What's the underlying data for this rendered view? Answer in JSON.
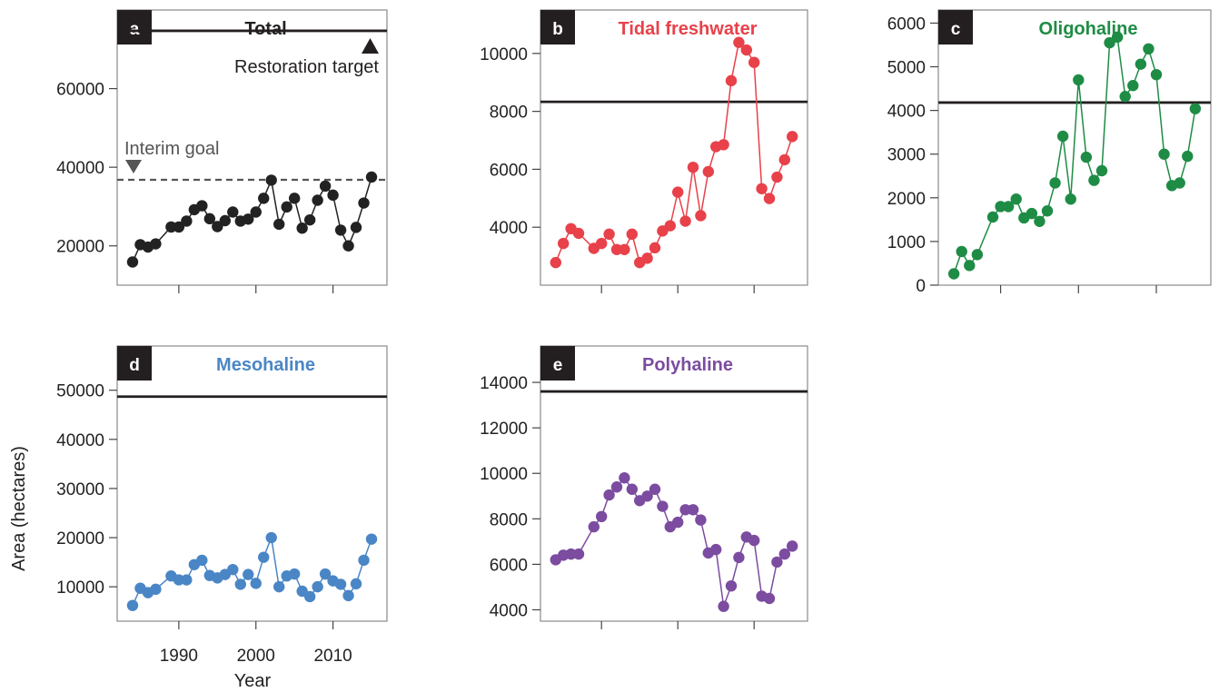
{
  "figure": {
    "ylabel": "Area (hectares)",
    "xlabel": "Year"
  },
  "chart_data": [
    {
      "panel": "a",
      "type": "line",
      "title": "Total",
      "color": "#222222",
      "x": [
        1984,
        1985,
        1986,
        1987,
        1988,
        1989,
        1990,
        1991,
        1992,
        1993,
        1994,
        1995,
        1996,
        1997,
        1998,
        1999,
        2000,
        2001,
        2002,
        2003,
        2004,
        2005,
        2006,
        2007,
        2008,
        2009,
        2010,
        2011,
        2012,
        2013,
        2014,
        2015
      ],
      "y": [
        15900,
        20300,
        19700,
        20500,
        null,
        24800,
        24800,
        26300,
        29200,
        30200,
        26900,
        24900,
        26400,
        28600,
        26300,
        26800,
        28600,
        32100,
        36700,
        25500,
        29900,
        32100,
        24500,
        26600,
        31600,
        35200,
        32900,
        24000,
        20000,
        24700,
        30900,
        37500
      ],
      "xlim": [
        1982,
        2017
      ],
      "ylim": [
        10000,
        80000
      ],
      "yticks": [
        20000,
        40000,
        60000
      ],
      "xticks": [
        1990,
        2000,
        2010
      ],
      "target": 74700,
      "interim_goal": 36800,
      "annotations": {
        "target_label": "Restoration target",
        "interim_label": "Interim goal"
      }
    },
    {
      "panel": "b",
      "type": "line",
      "title": "Tidal freshwater",
      "color": "#e8414a",
      "x": [
        1984,
        1985,
        1986,
        1987,
        1988,
        1989,
        1990,
        1991,
        1992,
        1993,
        1994,
        1995,
        1996,
        1997,
        1998,
        1999,
        2000,
        2001,
        2002,
        2003,
        2004,
        2005,
        2006,
        2007,
        2008,
        2009,
        2010,
        2011,
        2012,
        2013,
        2014,
        2015
      ],
      "y": [
        2780,
        3440,
        3950,
        3790,
        null,
        3270,
        3440,
        3760,
        3230,
        3230,
        3760,
        2780,
        2930,
        3290,
        3870,
        4050,
        5210,
        4210,
        6070,
        4400,
        5920,
        6780,
        6850,
        9060,
        10380,
        10120,
        9690,
        5330,
        4990,
        5730,
        6330,
        7130
      ],
      "xlim": [
        1982,
        2017
      ],
      "ylim": [
        2000,
        11500
      ],
      "yticks": [
        4000,
        6000,
        8000,
        10000
      ],
      "xticks": [
        1990,
        2000,
        2010
      ],
      "target": 8330
    },
    {
      "panel": "c",
      "type": "line",
      "title": "Oligohaline",
      "color": "#1e8c45",
      "x": [
        1984,
        1985,
        1986,
        1987,
        1988,
        1989,
        1990,
        1991,
        1992,
        1993,
        1994,
        1995,
        1996,
        1997,
        1998,
        1999,
        2000,
        2001,
        2002,
        2003,
        2004,
        2005,
        2006,
        2007,
        2008,
        2009,
        2010,
        2011,
        2012,
        2013,
        2014,
        2015
      ],
      "y": [
        260,
        770,
        450,
        700,
        null,
        1560,
        1800,
        1800,
        1970,
        1540,
        1640,
        1460,
        1700,
        2340,
        3410,
        1970,
        4700,
        2930,
        2400,
        2620,
        5550,
        5680,
        4320,
        4570,
        5060,
        5410,
        4820,
        3000,
        2280,
        2340,
        2950,
        4040
      ],
      "xlim": [
        1982,
        2017
      ],
      "ylim": [
        0,
        6300
      ],
      "yticks": [
        0,
        1000,
        2000,
        3000,
        4000,
        5000,
        6000
      ],
      "xticks": [
        1990,
        2000,
        2010
      ],
      "target": 4180
    },
    {
      "panel": "d",
      "type": "line",
      "title": "Mesohaline",
      "color": "#4a86c5",
      "x": [
        1984,
        1985,
        1986,
        1987,
        1988,
        1989,
        1990,
        1991,
        1992,
        1993,
        1994,
        1995,
        1996,
        1997,
        1998,
        1999,
        2000,
        2001,
        2002,
        2003,
        2004,
        2005,
        2006,
        2007,
        2008,
        2009,
        2010,
        2011,
        2012,
        2013,
        2014,
        2015
      ],
      "y": [
        6200,
        9700,
        8800,
        9500,
        null,
        12200,
        11400,
        11400,
        14500,
        15400,
        12300,
        11800,
        12500,
        13500,
        10500,
        12500,
        10700,
        16000,
        20000,
        10000,
        12200,
        12600,
        9100,
        8000,
        10000,
        12600,
        11200,
        10500,
        8200,
        10600,
        15400,
        19700
      ],
      "xlim": [
        1982,
        2017
      ],
      "ylim": [
        3000,
        59000
      ],
      "yticks": [
        10000,
        20000,
        30000,
        40000,
        50000
      ],
      "xticks": [
        1990,
        2000,
        2010
      ],
      "target": 48700
    },
    {
      "panel": "e",
      "type": "line",
      "title": "Polyhaline",
      "color": "#7b4ca0",
      "x": [
        1984,
        1985,
        1986,
        1987,
        1988,
        1989,
        1990,
        1991,
        1992,
        1993,
        1994,
        1995,
        1996,
        1997,
        1998,
        1999,
        2000,
        2001,
        2002,
        2003,
        2004,
        2005,
        2006,
        2007,
        2008,
        2009,
        2010,
        2011,
        2012,
        2013,
        2014,
        2015
      ],
      "y": [
        6200,
        6400,
        6450,
        6450,
        null,
        7650,
        8100,
        9050,
        9400,
        9800,
        9300,
        8800,
        9000,
        9300,
        8550,
        7650,
        7850,
        8400,
        8400,
        7950,
        6500,
        6650,
        4150,
        5050,
        6300,
        7200,
        7050,
        4600,
        4500,
        6100,
        6450,
        6800
      ],
      "xlim": [
        1982,
        2017
      ],
      "ylim": [
        3500,
        15600
      ],
      "yticks": [
        4000,
        6000,
        8000,
        10000,
        12000,
        14000
      ],
      "xticks": [
        1990,
        2000,
        2010
      ],
      "target": 13600
    }
  ]
}
